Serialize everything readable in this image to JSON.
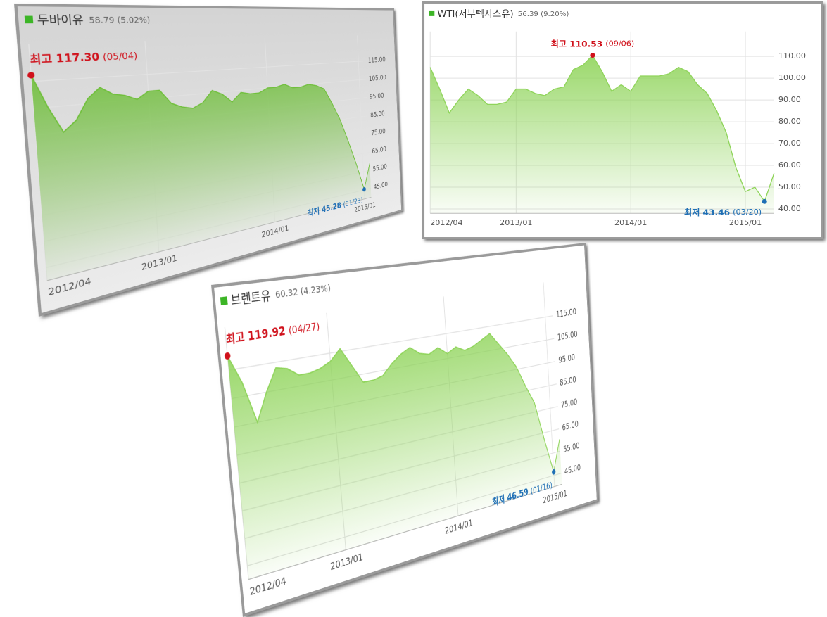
{
  "chart_data": [
    {
      "type": "area",
      "title": "두바이유",
      "subtitle": "58.79 (5.02%)",
      "color": "#6fbf3a",
      "x": [
        "2012/04",
        "2012/05",
        "2012/06",
        "2012/07",
        "2012/08",
        "2012/09",
        "2012/10",
        "2012/11",
        "2012/12",
        "2013/01",
        "2013/02",
        "2013/03",
        "2013/04",
        "2013/05",
        "2013/06",
        "2013/07",
        "2013/08",
        "2013/09",
        "2013/10",
        "2013/11",
        "2013/12",
        "2014/01",
        "2014/02",
        "2014/03",
        "2014/04",
        "2014/05",
        "2014/06",
        "2014/07",
        "2014/08",
        "2014/09",
        "2014/10",
        "2014/11",
        "2014/12",
        "2015/01",
        "2015/02"
      ],
      "values": [
        117.3,
        105,
        95,
        99,
        107,
        111,
        108,
        107,
        105,
        108,
        108,
        102,
        100,
        99,
        101,
        106,
        104,
        100,
        104,
        103,
        103,
        105,
        105,
        106,
        104,
        104,
        105,
        104,
        102,
        94,
        85,
        73,
        60,
        45.28,
        58.79
      ],
      "xticks": [
        "2012/04",
        "2013/01",
        "2014/01",
        "2015/01"
      ],
      "ylim": [
        40,
        122
      ],
      "yticks": [
        {
          "value": 45,
          "label": "45.00"
        },
        {
          "value": 55,
          "label": "55.00"
        },
        {
          "value": 65,
          "label": "65.00"
        },
        {
          "value": 75,
          "label": "75.00"
        },
        {
          "value": 85,
          "label": "85.00"
        },
        {
          "value": 95,
          "label": "95.00"
        },
        {
          "value": 105,
          "label": "105.00"
        },
        {
          "value": 115,
          "label": "115.00"
        }
      ],
      "grid": true,
      "annotations": [
        {
          "text": "최고",
          "value": 117.3,
          "value_label": "117.30",
          "date": "(05/04)",
          "x": "2012/04",
          "color": "#d0111b"
        },
        {
          "text": "최저",
          "value": 45.28,
          "value_label": "45.28",
          "date": "(01/23)",
          "x": "2015/01",
          "color": "#1f6fb5"
        }
      ]
    },
    {
      "type": "area",
      "title": "WTI(서부텍사스유)",
      "subtitle": "56.39 (9.20%)",
      "color": "#8fd45a",
      "x": [
        "2012/04",
        "2012/05",
        "2012/06",
        "2012/07",
        "2012/08",
        "2012/09",
        "2012/10",
        "2012/11",
        "2012/12",
        "2013/01",
        "2013/02",
        "2013/03",
        "2013/04",
        "2013/05",
        "2013/06",
        "2013/07",
        "2013/08",
        "2013/09",
        "2013/10",
        "2013/11",
        "2013/12",
        "2014/01",
        "2014/02",
        "2014/03",
        "2014/04",
        "2014/05",
        "2014/06",
        "2014/07",
        "2014/08",
        "2014/09",
        "2014/10",
        "2014/11",
        "2014/12",
        "2015/01",
        "2015/02",
        "2015/03",
        "2015/04"
      ],
      "values": [
        105,
        95,
        84,
        90,
        95,
        92,
        88,
        88,
        89,
        95,
        95,
        93,
        92,
        95,
        96,
        104,
        106,
        110.53,
        103,
        94,
        97,
        94,
        101,
        101,
        101,
        102,
        105,
        103,
        97,
        93,
        85,
        75,
        59,
        48,
        50,
        43.46,
        56.39
      ],
      "xticks": [
        "2012/04",
        "2013/01",
        "2014/01",
        "2015/01"
      ],
      "ylim": [
        38,
        115
      ],
      "yticks": [
        {
          "value": 40,
          "label": "40.00"
        },
        {
          "value": 50,
          "label": "50.00"
        },
        {
          "value": 60,
          "label": "60.00"
        },
        {
          "value": 70,
          "label": "70.00"
        },
        {
          "value": 80,
          "label": "80.00"
        },
        {
          "value": 90,
          "label": "90.00"
        },
        {
          "value": 100,
          "label": "100.00"
        },
        {
          "value": 110,
          "label": "110.00"
        }
      ],
      "grid": true,
      "annotations": [
        {
          "text": "최고",
          "value": 110.53,
          "value_label": "110.53",
          "date": "(09/06)",
          "x": "2013/09",
          "color": "#d0111b"
        },
        {
          "text": "최저",
          "value": 43.46,
          "value_label": "43.46",
          "date": "(03/20)",
          "x": "2015/03",
          "color": "#1f6fb5"
        }
      ]
    },
    {
      "type": "area",
      "title": "브렌트유",
      "subtitle": "60.32 (4.23%)",
      "color": "#8fd45a",
      "x": [
        "2012/04",
        "2012/05",
        "2012/06",
        "2012/07",
        "2012/08",
        "2012/09",
        "2012/10",
        "2012/11",
        "2012/12",
        "2013/01",
        "2013/02",
        "2013/03",
        "2013/04",
        "2013/05",
        "2013/06",
        "2013/07",
        "2013/08",
        "2013/09",
        "2013/10",
        "2013/11",
        "2013/12",
        "2014/01",
        "2014/02",
        "2014/03",
        "2014/04",
        "2014/05",
        "2014/06",
        "2014/07",
        "2014/08",
        "2014/09",
        "2014/10",
        "2014/11",
        "2014/12",
        "2015/01",
        "2015/02"
      ],
      "values": [
        119.92,
        110,
        95,
        105,
        113,
        112,
        109,
        109,
        110,
        112,
        116,
        109,
        102,
        102,
        103,
        107,
        110,
        112,
        109,
        108,
        110,
        107,
        109,
        107,
        108,
        110,
        112,
        107,
        102,
        96,
        87,
        79,
        62,
        46.59,
        60.32
      ],
      "xticks": [
        "2012/04",
        "2013/01",
        "2014/01",
        "2015/01"
      ],
      "ylim": [
        40,
        123
      ],
      "yticks": [
        {
          "value": 45,
          "label": "45.00"
        },
        {
          "value": 55,
          "label": "55.00"
        },
        {
          "value": 65,
          "label": "65.00"
        },
        {
          "value": 75,
          "label": "75.00"
        },
        {
          "value": 85,
          "label": "85.00"
        },
        {
          "value": 95,
          "label": "95.00"
        },
        {
          "value": 105,
          "label": "105.00"
        },
        {
          "value": 115,
          "label": "115.00"
        }
      ],
      "grid": true,
      "annotations": [
        {
          "text": "최고",
          "value": 119.92,
          "value_label": "119.92",
          "date": "(04/27)",
          "x": "2012/04",
          "color": "#d0111b"
        },
        {
          "text": "최저",
          "value": 46.59,
          "value_label": "46.59",
          "date": "(01/16)",
          "x": "2015/01",
          "color": "#1f6fb5"
        }
      ]
    }
  ]
}
